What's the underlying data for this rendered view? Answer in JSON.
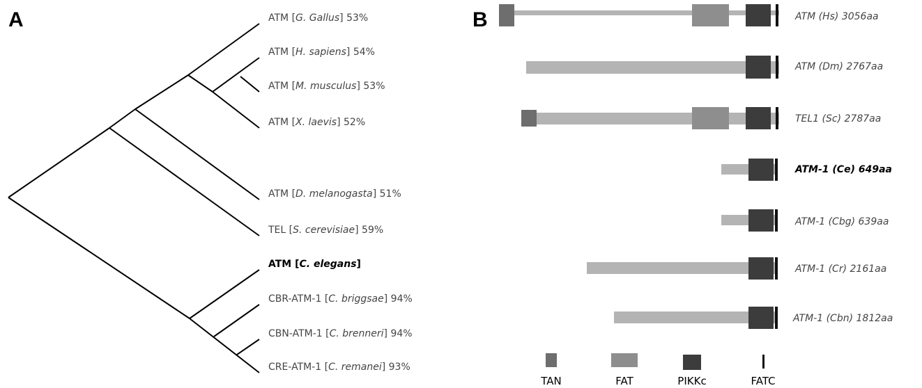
{
  "panels": {
    "a_label": "A",
    "b_label": "B"
  },
  "tree": {
    "leaves": [
      {
        "prefix": "ATM [",
        "species": "G. Gallus",
        "suffix": "] 53%",
        "bold": false
      },
      {
        "prefix": "ATM [",
        "species": "H. sapiens",
        "suffix": "] 54%",
        "bold": false
      },
      {
        "prefix": "ATM [",
        "species": "M. musculus",
        "suffix": "] 53%",
        "bold": false
      },
      {
        "prefix": "ATM [",
        "species": "X. laevis",
        "suffix": "] 52%",
        "bold": false
      },
      {
        "prefix": "ATM [",
        "species": "D. melanogasta",
        "suffix": "] 51%",
        "bold": false
      },
      {
        "prefix": "TEL [",
        "species": "S. cerevisiae",
        "suffix": "] 59%",
        "bold": false
      },
      {
        "prefix": "ATM [",
        "species": "C. elegans",
        "suffix": "]",
        "bold": true
      },
      {
        "prefix": "CBR-ATM-1 [",
        "species": "C. briggsae",
        "suffix": "] 94%",
        "bold": false
      },
      {
        "prefix": "CBN-ATM-1 [",
        "species": "C. brenneri",
        "suffix": "] 94%",
        "bold": false
      },
      {
        "prefix": "CRE-ATM-1 [",
        "species": "C. remanei",
        "suffix": "] 93%",
        "bold": false
      }
    ]
  },
  "proteins": [
    {
      "label": "ATM (Hs) 3056aa",
      "bold": false,
      "domains": [
        "TAN",
        "FAT",
        "PIKKc",
        "FATC"
      ]
    },
    {
      "label": "ATM (Dm) 2767aa",
      "bold": false,
      "domains": [
        "PIKKc",
        "FATC"
      ]
    },
    {
      "label": "TEL1 (Sc) 2787aa",
      "bold": false,
      "domains": [
        "TAN",
        "FAT",
        "PIKKc",
        "FATC"
      ]
    },
    {
      "label": "ATM-1 (Ce) 649aa",
      "bold": true,
      "domains": [
        "PIKKc",
        "FATC"
      ]
    },
    {
      "label": "ATM-1 (Cbg) 639aa",
      "bold": false,
      "domains": [
        "PIKKc",
        "FATC"
      ]
    },
    {
      "label": "ATM-1 (Cr) 2161aa",
      "bold": false,
      "domains": [
        "PIKKc",
        "FATC"
      ]
    },
    {
      "label": "ATM-1 (Cbn) 1812aa",
      "bold": false,
      "domains": [
        "PIKKc",
        "FATC"
      ]
    }
  ],
  "legend": [
    {
      "label": "TAN",
      "color": "#6e6e6e"
    },
    {
      "label": "FAT",
      "color": "#8e8e8e"
    },
    {
      "label": "PIKKc",
      "color": "#3c3c3c"
    },
    {
      "label": "FATC",
      "color": "#111111"
    }
  ],
  "colors": {
    "backbone": "#b4b4b4",
    "tan": "#6e6e6e",
    "fat": "#8e8e8e",
    "pikkc": "#3c3c3c",
    "fatc": "#111111"
  }
}
